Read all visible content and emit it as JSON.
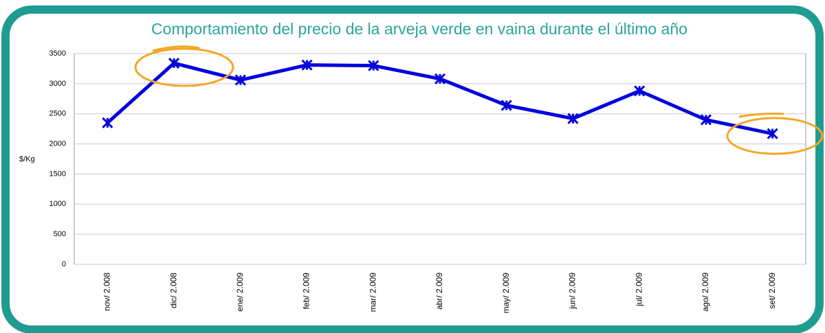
{
  "chart_data": {
    "type": "line",
    "title": "Comportamiento del precio de la arveja verde en vaina durante el último año",
    "y_label": "$/Kg",
    "categories": [
      "nov/ 2.008",
      "dic/ 2.008",
      "ene/ 2.009",
      "feb/ 2.009",
      "mar/ 2.009",
      "abr/ 2.009",
      "may/ 2.009",
      "jun/ 2.009",
      "jul/ 2.009",
      "ago/ 2.009",
      "set/ 2.009"
    ],
    "series": [
      {
        "color": "#0000dd",
        "values": [
          2350,
          3340,
          3060,
          3310,
          3300,
          3080,
          2640,
          2420,
          2880,
          2400,
          2170
        ]
      }
    ],
    "ylim": [
      0,
      3500
    ],
    "yticks": [
      0,
      500,
      1000,
      1500,
      2000,
      2500,
      3000,
      3500
    ],
    "grid": true
  }
}
